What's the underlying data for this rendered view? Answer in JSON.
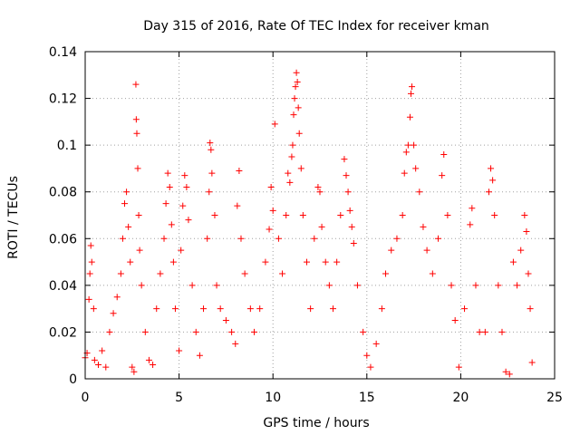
{
  "chart_data": {
    "type": "scatter",
    "title": "Day 315 of 2016, Rate Of TEC Index for receiver kman",
    "xlabel": "GPS time / hours",
    "ylabel": "ROTI / TECUs",
    "xlim": [
      0,
      25
    ],
    "ylim": [
      0,
      0.14
    ],
    "xticks": [
      0,
      5,
      10,
      15,
      20,
      25
    ],
    "yticks": [
      0,
      0.02,
      0.04,
      0.06,
      0.08,
      0.1,
      0.12,
      0.14
    ],
    "xtick_labels": [
      "0",
      "5",
      "10",
      "15",
      "20",
      "25"
    ],
    "ytick_labels": [
      "0",
      "0.02",
      "0.04",
      "0.06",
      "0.08",
      "0.1",
      "0.12",
      "0.14"
    ],
    "grid": true,
    "marker": "+",
    "color": "#ff0000",
    "series": [
      {
        "points": [
          [
            0.0,
            0.009
          ],
          [
            0.1,
            0.011
          ],
          [
            0.2,
            0.034
          ],
          [
            0.25,
            0.045
          ],
          [
            0.3,
            0.057
          ],
          [
            0.35,
            0.05
          ],
          [
            0.45,
            0.03
          ],
          [
            0.5,
            0.008
          ],
          [
            0.7,
            0.006
          ],
          [
            0.9,
            0.012
          ],
          [
            1.1,
            0.005
          ],
          [
            1.3,
            0.02
          ],
          [
            1.5,
            0.028
          ],
          [
            1.7,
            0.035
          ],
          [
            1.9,
            0.045
          ],
          [
            2.0,
            0.06
          ],
          [
            2.1,
            0.075
          ],
          [
            2.2,
            0.08
          ],
          [
            2.3,
            0.065
          ],
          [
            2.4,
            0.05
          ],
          [
            2.5,
            0.005
          ],
          [
            2.6,
            0.003
          ],
          [
            2.7,
            0.126
          ],
          [
            2.72,
            0.111
          ],
          [
            2.75,
            0.105
          ],
          [
            2.8,
            0.09
          ],
          [
            2.85,
            0.07
          ],
          [
            2.9,
            0.055
          ],
          [
            3.0,
            0.04
          ],
          [
            3.2,
            0.02
          ],
          [
            3.4,
            0.008
          ],
          [
            3.6,
            0.006
          ],
          [
            3.8,
            0.03
          ],
          [
            4.0,
            0.045
          ],
          [
            4.2,
            0.06
          ],
          [
            4.3,
            0.075
          ],
          [
            4.4,
            0.088
          ],
          [
            4.5,
            0.082
          ],
          [
            4.6,
            0.066
          ],
          [
            4.7,
            0.05
          ],
          [
            4.8,
            0.03
          ],
          [
            5.0,
            0.012
          ],
          [
            5.1,
            0.055
          ],
          [
            5.2,
            0.074
          ],
          [
            5.3,
            0.087
          ],
          [
            5.4,
            0.082
          ],
          [
            5.5,
            0.068
          ],
          [
            5.7,
            0.04
          ],
          [
            5.9,
            0.02
          ],
          [
            6.1,
            0.01
          ],
          [
            6.3,
            0.03
          ],
          [
            6.5,
            0.06
          ],
          [
            6.6,
            0.08
          ],
          [
            6.65,
            0.101
          ],
          [
            6.7,
            0.098
          ],
          [
            6.75,
            0.088
          ],
          [
            6.9,
            0.07
          ],
          [
            7.0,
            0.04
          ],
          [
            7.2,
            0.03
          ],
          [
            7.5,
            0.025
          ],
          [
            7.8,
            0.02
          ],
          [
            8.0,
            0.015
          ],
          [
            8.1,
            0.074
          ],
          [
            8.2,
            0.089
          ],
          [
            8.3,
            0.06
          ],
          [
            8.5,
            0.045
          ],
          [
            8.8,
            0.03
          ],
          [
            9.0,
            0.02
          ],
          [
            9.3,
            0.03
          ],
          [
            9.6,
            0.05
          ],
          [
            9.8,
            0.064
          ],
          [
            9.9,
            0.082
          ],
          [
            10.0,
            0.072
          ],
          [
            10.1,
            0.109
          ],
          [
            10.3,
            0.06
          ],
          [
            10.5,
            0.045
          ],
          [
            10.7,
            0.07
          ],
          [
            10.8,
            0.088
          ],
          [
            10.9,
            0.084
          ],
          [
            11.0,
            0.095
          ],
          [
            11.05,
            0.1
          ],
          [
            11.1,
            0.113
          ],
          [
            11.15,
            0.12
          ],
          [
            11.2,
            0.125
          ],
          [
            11.25,
            0.131
          ],
          [
            11.3,
            0.127
          ],
          [
            11.35,
            0.116
          ],
          [
            11.4,
            0.105
          ],
          [
            11.5,
            0.09
          ],
          [
            11.6,
            0.07
          ],
          [
            11.8,
            0.05
          ],
          [
            12.0,
            0.03
          ],
          [
            12.2,
            0.06
          ],
          [
            12.4,
            0.082
          ],
          [
            12.5,
            0.08
          ],
          [
            12.6,
            0.065
          ],
          [
            12.8,
            0.05
          ],
          [
            13.0,
            0.04
          ],
          [
            13.2,
            0.03
          ],
          [
            13.4,
            0.05
          ],
          [
            13.6,
            0.07
          ],
          [
            13.8,
            0.094
          ],
          [
            13.9,
            0.087
          ],
          [
            14.0,
            0.08
          ],
          [
            14.1,
            0.072
          ],
          [
            14.2,
            0.065
          ],
          [
            14.3,
            0.058
          ],
          [
            14.5,
            0.04
          ],
          [
            14.8,
            0.02
          ],
          [
            15.0,
            0.01
          ],
          [
            15.2,
            0.005
          ],
          [
            15.5,
            0.015
          ],
          [
            15.8,
            0.03
          ],
          [
            16.0,
            0.045
          ],
          [
            16.3,
            0.055
          ],
          [
            16.6,
            0.06
          ],
          [
            16.9,
            0.07
          ],
          [
            17.0,
            0.088
          ],
          [
            17.1,
            0.097
          ],
          [
            17.2,
            0.1
          ],
          [
            17.3,
            0.112
          ],
          [
            17.35,
            0.122
          ],
          [
            17.4,
            0.125
          ],
          [
            17.5,
            0.1
          ],
          [
            17.6,
            0.09
          ],
          [
            17.8,
            0.08
          ],
          [
            18.0,
            0.065
          ],
          [
            18.2,
            0.055
          ],
          [
            18.5,
            0.045
          ],
          [
            18.8,
            0.06
          ],
          [
            19.0,
            0.087
          ],
          [
            19.1,
            0.096
          ],
          [
            19.3,
            0.07
          ],
          [
            19.5,
            0.04
          ],
          [
            19.7,
            0.025
          ],
          [
            19.9,
            0.005
          ],
          [
            20.2,
            0.03
          ],
          [
            20.5,
            0.066
          ],
          [
            20.6,
            0.073
          ],
          [
            20.8,
            0.04
          ],
          [
            21.0,
            0.02
          ],
          [
            21.3,
            0.02
          ],
          [
            21.5,
            0.08
          ],
          [
            21.6,
            0.09
          ],
          [
            21.7,
            0.085
          ],
          [
            21.8,
            0.07
          ],
          [
            22.0,
            0.04
          ],
          [
            22.2,
            0.02
          ],
          [
            22.4,
            0.003
          ],
          [
            22.6,
            0.002
          ],
          [
            22.8,
            0.05
          ],
          [
            23.0,
            0.04
          ],
          [
            23.2,
            0.055
          ],
          [
            23.4,
            0.07
          ],
          [
            23.5,
            0.063
          ],
          [
            23.6,
            0.045
          ],
          [
            23.7,
            0.03
          ],
          [
            23.8,
            0.007
          ]
        ]
      }
    ]
  }
}
